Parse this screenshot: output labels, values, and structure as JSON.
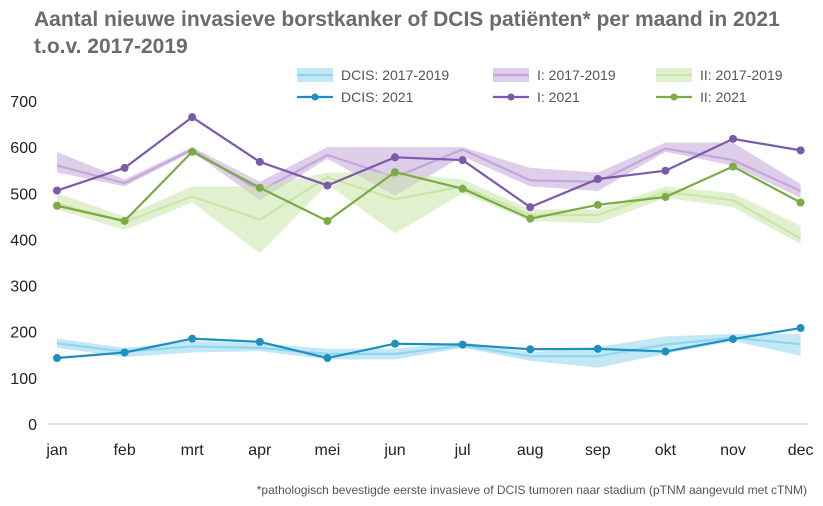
{
  "title": "Aantal nieuwe invasieve borstkanker of DCIS patiënten* per maand in 2021 t.o.v. 2017-2019",
  "footnote": "*pathologisch bevestigde eerste invasieve of DCIS tumoren naar stadium (pTNM aangevuld met cTNM)",
  "chart_data": {
    "type": "line",
    "title": "Aantal nieuwe invasieve borstkanker of DCIS patiënten* per maand in 2021 t.o.v. 2017-2019",
    "xlabel": "",
    "ylabel": "",
    "categories": [
      "jan",
      "feb",
      "mrt",
      "apr",
      "mei",
      "jun",
      "jul",
      "aug",
      "sep",
      "okt",
      "nov",
      "dec"
    ],
    "ylim": [
      0,
      700
    ],
    "yticks": [
      0,
      100,
      200,
      300,
      400,
      500,
      600,
      700
    ],
    "grid": false,
    "legend_position": "top",
    "bands": [
      {
        "name": "DCIS: 2017-2019",
        "color": "#8fd6ee",
        "mean": [
          175,
          157,
          168,
          165,
          152,
          152,
          170,
          147,
          147,
          172,
          187,
          173
        ],
        "low": [
          165,
          145,
          155,
          158,
          140,
          140,
          165,
          137,
          122,
          152,
          180,
          148
        ],
        "high": [
          185,
          165,
          180,
          175,
          163,
          163,
          178,
          155,
          167,
          190,
          195,
          195
        ]
      },
      {
        "name": "I: 2017-2019",
        "color": "#c5a6d9",
        "mean": [
          560,
          522,
          595,
          505,
          583,
          535,
          595,
          528,
          525,
          597,
          572,
          505
        ],
        "low": [
          545,
          515,
          590,
          485,
          575,
          495,
          580,
          515,
          505,
          590,
          560,
          490
        ],
        "high": [
          590,
          530,
          600,
          525,
          600,
          600,
          600,
          555,
          545,
          610,
          610,
          520
        ]
      },
      {
        "name": "II: 2017-2019",
        "color": "#c9e6a8",
        "mean": [
          478,
          438,
          493,
          443,
          535,
          487,
          515,
          453,
          453,
          503,
          485,
          402
        ],
        "low": [
          465,
          420,
          480,
          370,
          520,
          413,
          500,
          440,
          435,
          490,
          470,
          390
        ],
        "high": [
          500,
          450,
          515,
          515,
          545,
          545,
          530,
          465,
          465,
          515,
          500,
          430
        ]
      }
    ],
    "series": [
      {
        "name": "DCIS: 2021",
        "color": "#1f8fc0",
        "values": [
          143,
          155,
          185,
          178,
          143,
          174,
          172,
          162,
          163,
          157,
          184,
          208
        ]
      },
      {
        "name": "I: 2021",
        "color": "#7a5aaa",
        "values": [
          506,
          555,
          665,
          568,
          517,
          578,
          572,
          470,
          531,
          549,
          618,
          593
        ]
      },
      {
        "name": "II: 2021",
        "color": "#7aab44",
        "values": [
          473,
          440,
          590,
          512,
          440,
          546,
          510,
          445,
          475,
          492,
          558,
          480
        ]
      }
    ]
  }
}
